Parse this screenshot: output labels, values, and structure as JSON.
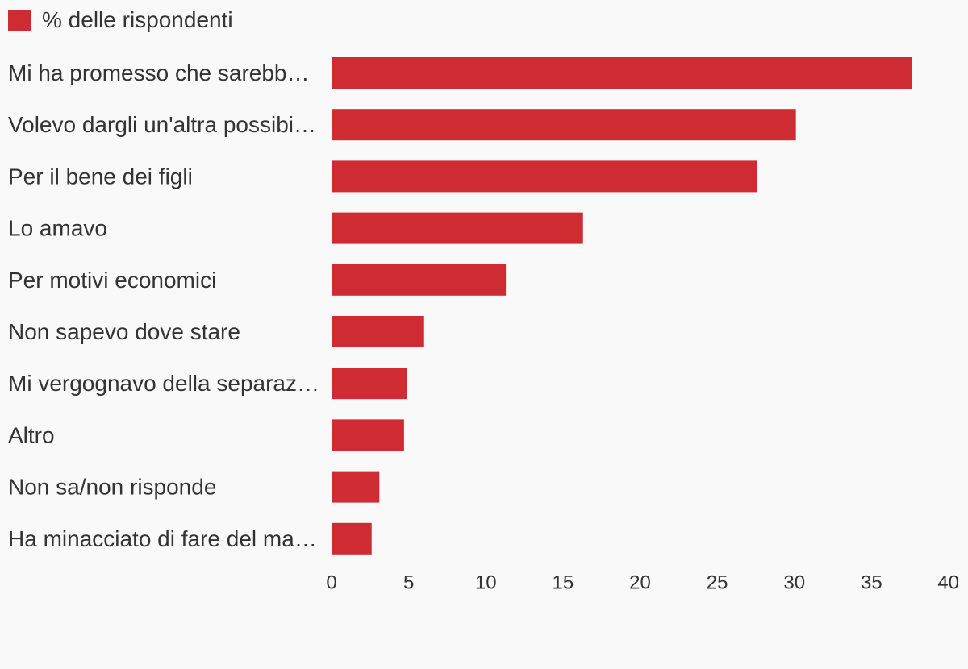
{
  "legend": {
    "label": "% delle rispondenti"
  },
  "colors": {
    "bar": "#ce2b33",
    "text": "#333333",
    "background": "#f9f9f9"
  },
  "chart_data": {
    "type": "bar",
    "orientation": "horizontal",
    "categories": [
      "Mi ha promesso che sarebb…",
      "Volevo dargli un'altra possibi…",
      "Per il bene dei figli",
      "Lo amavo",
      "Per motivi economici",
      "Non sapevo dove stare",
      "Mi vergognavo della separaz…",
      "Altro",
      "Non sa/non risponde",
      "Ha minacciato di fare del ma…"
    ],
    "series": [
      {
        "name": "% delle rispondenti",
        "values": [
          37.6,
          30.1,
          27.6,
          16.3,
          11.3,
          6.0,
          4.9,
          4.7,
          3.1,
          2.6
        ]
      }
    ],
    "xlim": [
      0,
      40
    ],
    "xticks": [
      "0",
      "5",
      "10",
      "15",
      "20",
      "25",
      "30",
      "35",
      "40"
    ],
    "grid": false,
    "legend_position": "top-left"
  }
}
